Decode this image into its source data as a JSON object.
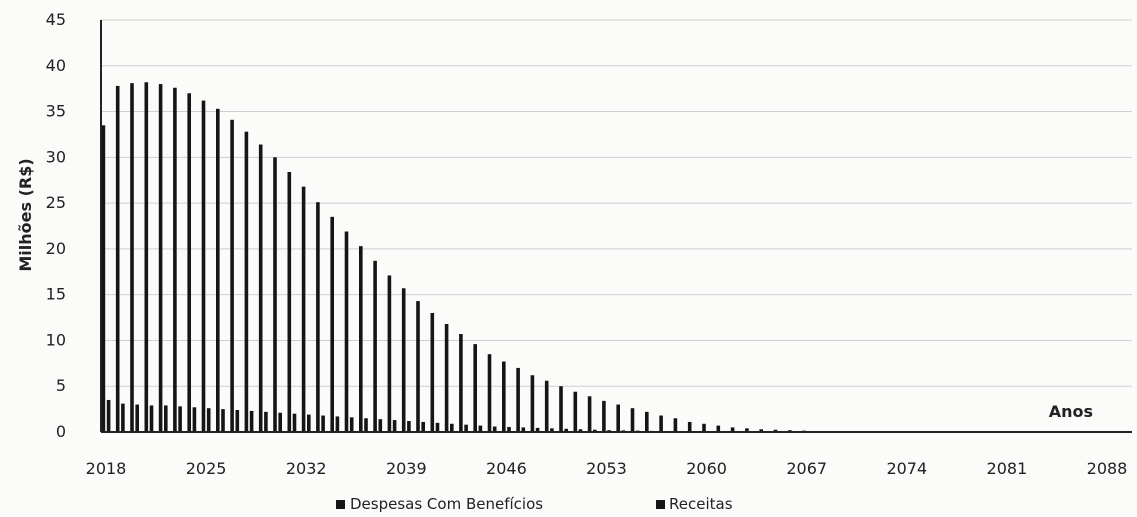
{
  "chart_data": {
    "type": "bar",
    "title": "",
    "ylabel": "Milhões (R$)",
    "xlabel": "Anos",
    "ylim": [
      0,
      45
    ],
    "y_ticks": [
      "0",
      "5",
      "10",
      "15",
      "20",
      "25",
      "30",
      "35",
      "40",
      "45"
    ],
    "x_ticks": [
      "2018",
      "2025",
      "2032",
      "2039",
      "2046",
      "2053",
      "2060",
      "2067",
      "2074",
      "2081",
      "2088"
    ],
    "grid": true,
    "legend_position": "bottom",
    "categories": [
      2018,
      2019,
      2020,
      2021,
      2022,
      2023,
      2024,
      2025,
      2026,
      2027,
      2028,
      2029,
      2030,
      2031,
      2032,
      2033,
      2034,
      2035,
      2036,
      2037,
      2038,
      2039,
      2040,
      2041,
      2042,
      2043,
      2044,
      2045,
      2046,
      2047,
      2048,
      2049,
      2050,
      2051,
      2052,
      2053,
      2054,
      2055,
      2056,
      2057,
      2058,
      2059,
      2060,
      2061,
      2062,
      2063,
      2064,
      2065,
      2066,
      2067,
      2068,
      2069,
      2070,
      2071,
      2072,
      2073,
      2074,
      2075,
      2076,
      2077,
      2078,
      2079,
      2080,
      2081,
      2082,
      2083,
      2084,
      2085,
      2086,
      2087,
      2088
    ],
    "series": [
      {
        "name": "Despesas Com Benefícios",
        "color": "#151515",
        "values": [
          33.5,
          37.8,
          38.1,
          38.2,
          38.0,
          37.6,
          37.0,
          36.2,
          35.3,
          34.1,
          32.8,
          31.4,
          30.0,
          28.4,
          26.8,
          25.1,
          23.5,
          21.9,
          20.3,
          18.7,
          17.1,
          15.7,
          14.3,
          13.0,
          11.8,
          10.7,
          9.6,
          8.5,
          7.7,
          7.0,
          6.2,
          5.6,
          5.0,
          4.4,
          3.9,
          3.4,
          3.0,
          2.6,
          2.2,
          1.8,
          1.5,
          1.1,
          0.9,
          0.7,
          0.5,
          0.4,
          0.3,
          0.25,
          0.2,
          0.15,
          0.1,
          0.1,
          0.08,
          0.06,
          0.05,
          0.04,
          0.03,
          0.03,
          0.02,
          0.02,
          0.02,
          0.01,
          0.01,
          0.01,
          0.01,
          0,
          0,
          0,
          0,
          0,
          0
        ]
      },
      {
        "name": "Receitas",
        "color": "#151515",
        "values": [
          3.5,
          3.1,
          3.0,
          2.9,
          2.9,
          2.8,
          2.7,
          2.6,
          2.5,
          2.4,
          2.3,
          2.2,
          2.1,
          2.0,
          1.9,
          1.8,
          1.7,
          1.6,
          1.5,
          1.4,
          1.3,
          1.2,
          1.1,
          1.0,
          0.9,
          0.8,
          0.7,
          0.6,
          0.55,
          0.5,
          0.45,
          0.4,
          0.35,
          0.3,
          0.25,
          0.2,
          0.18,
          0.15,
          0.12,
          0.1,
          0.08,
          0.06,
          0.05,
          0.04,
          0.03,
          0.02,
          0.02,
          0.01,
          0.01,
          0,
          0,
          0,
          0,
          0,
          0,
          0,
          0,
          0,
          0,
          0,
          0,
          0,
          0,
          0,
          0,
          0,
          0,
          0,
          0,
          0,
          0
        ]
      }
    ]
  }
}
